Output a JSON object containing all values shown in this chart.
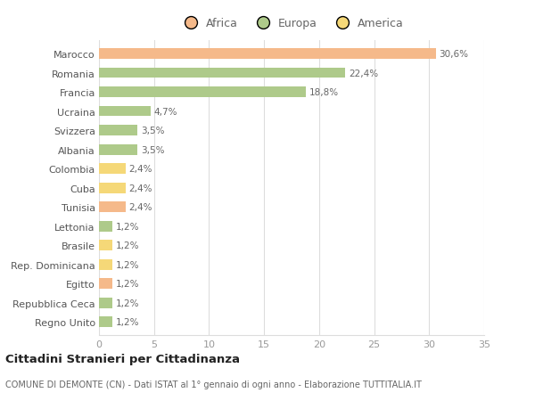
{
  "title": "Cittadini Stranieri per Cittadinanza",
  "subtitle": "COMUNE DI DEMONTE (CN) - Dati ISTAT al 1° gennaio di ogni anno - Elaborazione TUTTITALIA.IT",
  "categories": [
    "Marocco",
    "Romania",
    "Francia",
    "Ucraina",
    "Svizzera",
    "Albania",
    "Colombia",
    "Cuba",
    "Tunisia",
    "Lettonia",
    "Brasile",
    "Rep. Dominicana",
    "Egitto",
    "Repubblica Ceca",
    "Regno Unito"
  ],
  "values": [
    30.6,
    22.4,
    18.8,
    4.7,
    3.5,
    3.5,
    2.4,
    2.4,
    2.4,
    1.2,
    1.2,
    1.2,
    1.2,
    1.2,
    1.2
  ],
  "labels": [
    "30,6%",
    "22,4%",
    "18,8%",
    "4,7%",
    "3,5%",
    "3,5%",
    "2,4%",
    "2,4%",
    "2,4%",
    "1,2%",
    "1,2%",
    "1,2%",
    "1,2%",
    "1,2%",
    "1,2%"
  ],
  "colors": [
    "#F5B98A",
    "#AECA8A",
    "#AECA8A",
    "#AECA8A",
    "#AECA8A",
    "#AECA8A",
    "#F5D878",
    "#F5D878",
    "#F5B98A",
    "#AECA8A",
    "#F5D878",
    "#F5D878",
    "#F5B98A",
    "#AECA8A",
    "#AECA8A"
  ],
  "continent_colors": {
    "Africa": "#F5B98A",
    "Europa": "#AECA8A",
    "America": "#F5D878"
  },
  "xlim": [
    0,
    35
  ],
  "xticks": [
    0,
    5,
    10,
    15,
    20,
    25,
    30,
    35
  ],
  "background_color": "#ffffff",
  "grid_color": "#dddddd",
  "bar_height": 0.55
}
